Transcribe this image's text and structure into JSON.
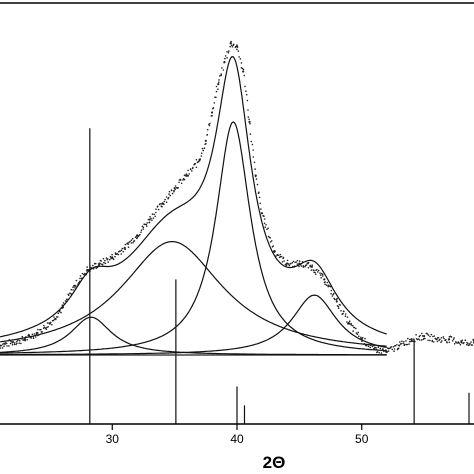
{
  "chart_data": {
    "type": "line",
    "title": "",
    "xlabel": "2Θ",
    "ylabel": "",
    "xlim": [
      21,
      59
    ],
    "ylim": [
      0,
      100
    ],
    "xticks": [
      30,
      40,
      50
    ],
    "tick_labels": [
      "30",
      "40",
      "50"
    ],
    "baseline_end_x": 52,
    "observed_pattern": {
      "x": [
        21,
        22,
        23,
        24,
        25,
        26,
        27,
        28,
        29,
        30,
        31,
        32,
        33,
        34,
        35,
        36,
        37,
        37.5,
        38,
        38.5,
        39,
        39.5,
        40,
        40.5,
        41,
        41.5,
        42,
        43,
        44,
        45,
        46,
        47,
        48,
        49,
        50,
        51,
        52,
        53,
        54,
        55,
        56,
        57,
        58,
        59
      ],
      "y": [
        3,
        4,
        5,
        7,
        10,
        15,
        22,
        27,
        29,
        31,
        34,
        38,
        43,
        48,
        53,
        57,
        62,
        68,
        77,
        86,
        93,
        99,
        98,
        90,
        74,
        57,
        45,
        33,
        29,
        29,
        28,
        24,
        17,
        10,
        5,
        2,
        1,
        3,
        5,
        6,
        5,
        5,
        4,
        4
      ]
    },
    "fitted_peaks": [
      {
        "center": 28.3,
        "height": 12,
        "fwhm": 4.0
      },
      {
        "center": 34.8,
        "height": 36,
        "fwhm": 10.0
      },
      {
        "center": 39.7,
        "height": 74,
        "fwhm": 3.4
      },
      {
        "center": 46.2,
        "height": 19,
        "fwhm": 4.4
      }
    ],
    "reference_lines": [
      {
        "x": 28.2,
        "y_top": 72
      },
      {
        "x": 35.1,
        "y_top": 24
      },
      {
        "x": 40.0,
        "y_top": -10
      },
      {
        "x": 40.6,
        "y_top": -16
      },
      {
        "x": 54.2,
        "y_top": 5
      },
      {
        "x": 58.6,
        "y_top": -12
      }
    ]
  }
}
